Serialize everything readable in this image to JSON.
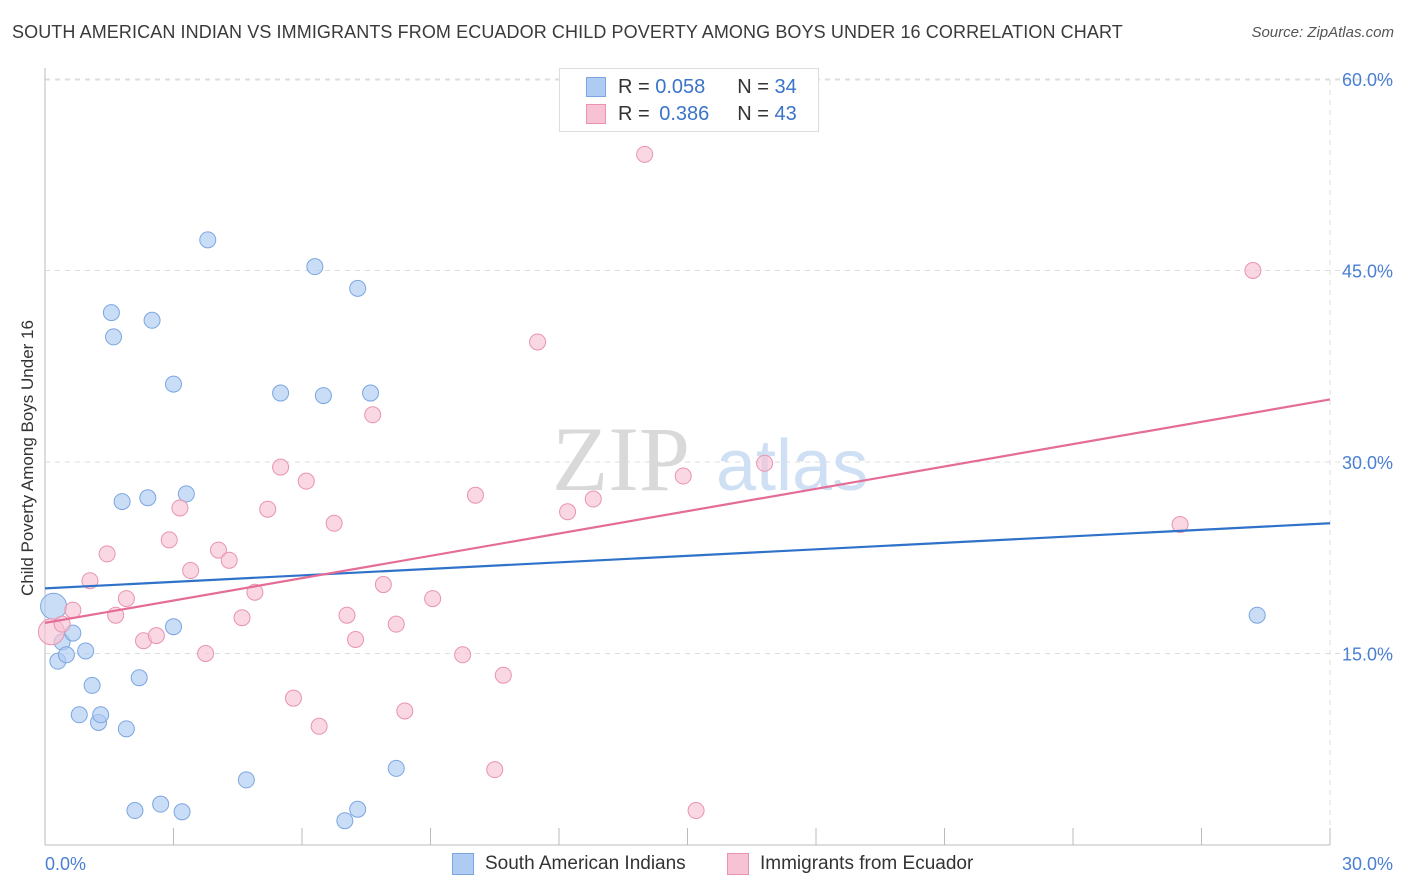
{
  "title": "SOUTH AMERICAN INDIAN VS IMMIGRANTS FROM ECUADOR CHILD POVERTY AMONG BOYS UNDER 16 CORRELATION CHART",
  "source": "Source: ZipAtlas.com",
  "watermark": {
    "zip": "ZIP",
    "atlas": "atlas"
  },
  "legend": {
    "r_label": "R =",
    "n_label": "N =",
    "series": [
      {
        "r": "0.058",
        "n": "34"
      },
      {
        "r": "0.386",
        "n": "43"
      }
    ]
  },
  "colors": {
    "blue_fill": "#aecbf2",
    "blue_stroke": "#7ba6e0",
    "blue_line": "#2f72c9",
    "pink_fill": "#f7c3d4",
    "pink_stroke": "#e993b0",
    "pink_line": "#e46c97",
    "grid": "#dddddd",
    "axis": "#bbbbbb"
  },
  "chart_data": {
    "type": "scatter",
    "title": "SOUTH AMERICAN INDIAN VS IMMIGRANTS FROM ECUADOR CHILD POVERTY AMONG BOYS UNDER 16 CORRELATION CHART",
    "xlabel": "",
    "ylabel": "Child Poverty Among Boys Under 16",
    "xlim": [
      0,
      30
    ],
    "ylim": [
      0,
      60
    ],
    "x_tick_labels": [
      "0.0%",
      "30.0%"
    ],
    "y_ticks": [
      15,
      30,
      45,
      60
    ],
    "y_tick_labels": [
      "15.0%",
      "30.0%",
      "45.0%",
      "60.0%"
    ],
    "series": [
      {
        "name": "South American Indians",
        "color": "blue",
        "points": [
          [
            0.2,
            18.7
          ],
          [
            0.3,
            14.4
          ],
          [
            0.4,
            15.9
          ],
          [
            0.5,
            14.9
          ],
          [
            0.65,
            16.6
          ],
          [
            0.95,
            15.2
          ],
          [
            1.1,
            12.5
          ],
          [
            0.8,
            10.2
          ],
          [
            1.25,
            9.6
          ],
          [
            1.3,
            10.2
          ],
          [
            1.9,
            9.1
          ],
          [
            1.55,
            41.7
          ],
          [
            1.6,
            39.8
          ],
          [
            2.5,
            41.1
          ],
          [
            3.0,
            36.1
          ],
          [
            3.8,
            47.4
          ],
          [
            6.3,
            45.3
          ],
          [
            7.3,
            43.6
          ],
          [
            5.5,
            35.4
          ],
          [
            6.5,
            35.2
          ],
          [
            7.6,
            35.4
          ],
          [
            1.8,
            26.9
          ],
          [
            2.4,
            27.2
          ],
          [
            3.3,
            27.5
          ],
          [
            3.0,
            17.1
          ],
          [
            2.2,
            13.1
          ],
          [
            2.1,
            2.7
          ],
          [
            2.7,
            3.2
          ],
          [
            3.2,
            2.6
          ],
          [
            4.7,
            5.1
          ],
          [
            7.0,
            1.9
          ],
          [
            7.3,
            2.8
          ],
          [
            8.2,
            6.0
          ],
          [
            28.3,
            18.0
          ]
        ],
        "trend": {
          "x": [
            0,
            30
          ],
          "y": [
            20.1,
            25.2
          ]
        }
      },
      {
        "name": "Immigrants from Ecuador",
        "color": "pink",
        "points": [
          [
            0.15,
            16.7
          ],
          [
            0.4,
            17.3
          ],
          [
            0.65,
            18.4
          ],
          [
            1.05,
            20.7
          ],
          [
            1.45,
            22.8
          ],
          [
            1.65,
            18.0
          ],
          [
            1.9,
            19.3
          ],
          [
            2.3,
            16.0
          ],
          [
            2.6,
            16.4
          ],
          [
            2.9,
            23.9
          ],
          [
            3.15,
            26.4
          ],
          [
            3.4,
            21.5
          ],
          [
            3.75,
            15.0
          ],
          [
            4.05,
            23.1
          ],
          [
            4.3,
            22.3
          ],
          [
            4.6,
            17.8
          ],
          [
            4.9,
            19.8
          ],
          [
            5.2,
            26.3
          ],
          [
            5.5,
            29.6
          ],
          [
            5.8,
            11.5
          ],
          [
            6.1,
            28.5
          ],
          [
            6.4,
            9.3
          ],
          [
            6.75,
            25.2
          ],
          [
            7.05,
            18.0
          ],
          [
            7.25,
            16.1
          ],
          [
            7.65,
            33.7
          ],
          [
            7.9,
            20.4
          ],
          [
            8.2,
            17.3
          ],
          [
            8.4,
            10.5
          ],
          [
            9.05,
            19.3
          ],
          [
            9.75,
            14.9
          ],
          [
            10.05,
            27.4
          ],
          [
            10.5,
            5.9
          ],
          [
            10.7,
            13.3
          ],
          [
            11.5,
            39.4
          ],
          [
            12.2,
            26.1
          ],
          [
            12.8,
            27.1
          ],
          [
            14.0,
            54.1
          ],
          [
            14.9,
            28.9
          ],
          [
            15.2,
            2.7
          ],
          [
            16.8,
            29.9
          ],
          [
            26.5,
            25.1
          ],
          [
            28.2,
            45.0
          ]
        ],
        "trend": {
          "x": [
            0,
            30
          ],
          "y": [
            17.4,
            34.9
          ]
        }
      }
    ]
  },
  "bottom_legend": [
    "South American Indians",
    "Immigrants from Ecuador"
  ]
}
